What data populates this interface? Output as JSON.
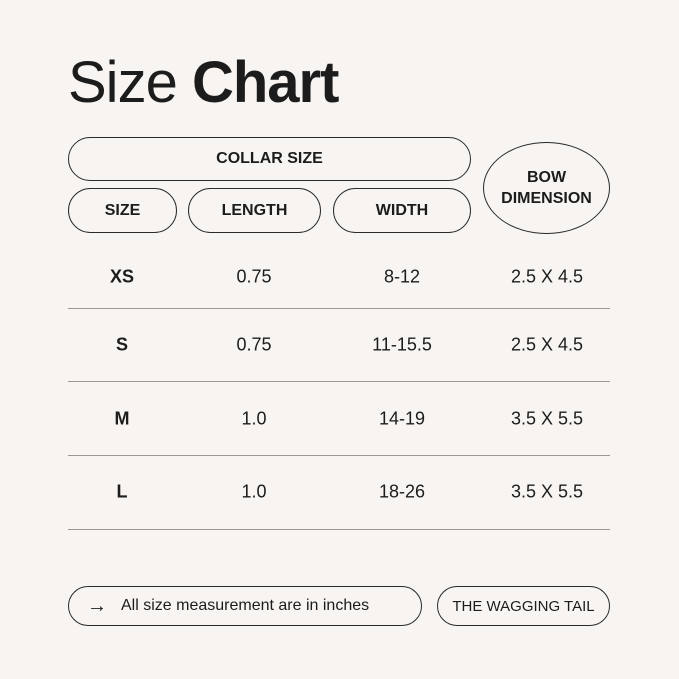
{
  "title": {
    "regular": "Size",
    "bold": "Chart"
  },
  "headers": {
    "group": "COLLAR SIZE",
    "columns": [
      "SIZE",
      "LENGTH",
      "WIDTH"
    ],
    "bow": "BOW DIMENSION"
  },
  "rows": [
    {
      "size": "XS",
      "length": "0.75",
      "width": "8-12",
      "bow": "2.5 X 4.5"
    },
    {
      "size": "S",
      "length": "0.75",
      "width": "11-15.5",
      "bow": "2.5 X 4.5"
    },
    {
      "size": "M",
      "length": "1.0",
      "width": "14-19",
      "bow": "3.5 X 5.5"
    },
    {
      "size": "L",
      "length": "1.0",
      "width": "18-26",
      "bow": "3.5 X 5.5"
    }
  ],
  "footer": {
    "arrow_icon": "arrow-right-icon",
    "note": "All size measurement are in inches",
    "brand": "THE WAGGING TAIL"
  },
  "colors": {
    "background": "#f7f4f1",
    "text": "#1c1c1c"
  }
}
